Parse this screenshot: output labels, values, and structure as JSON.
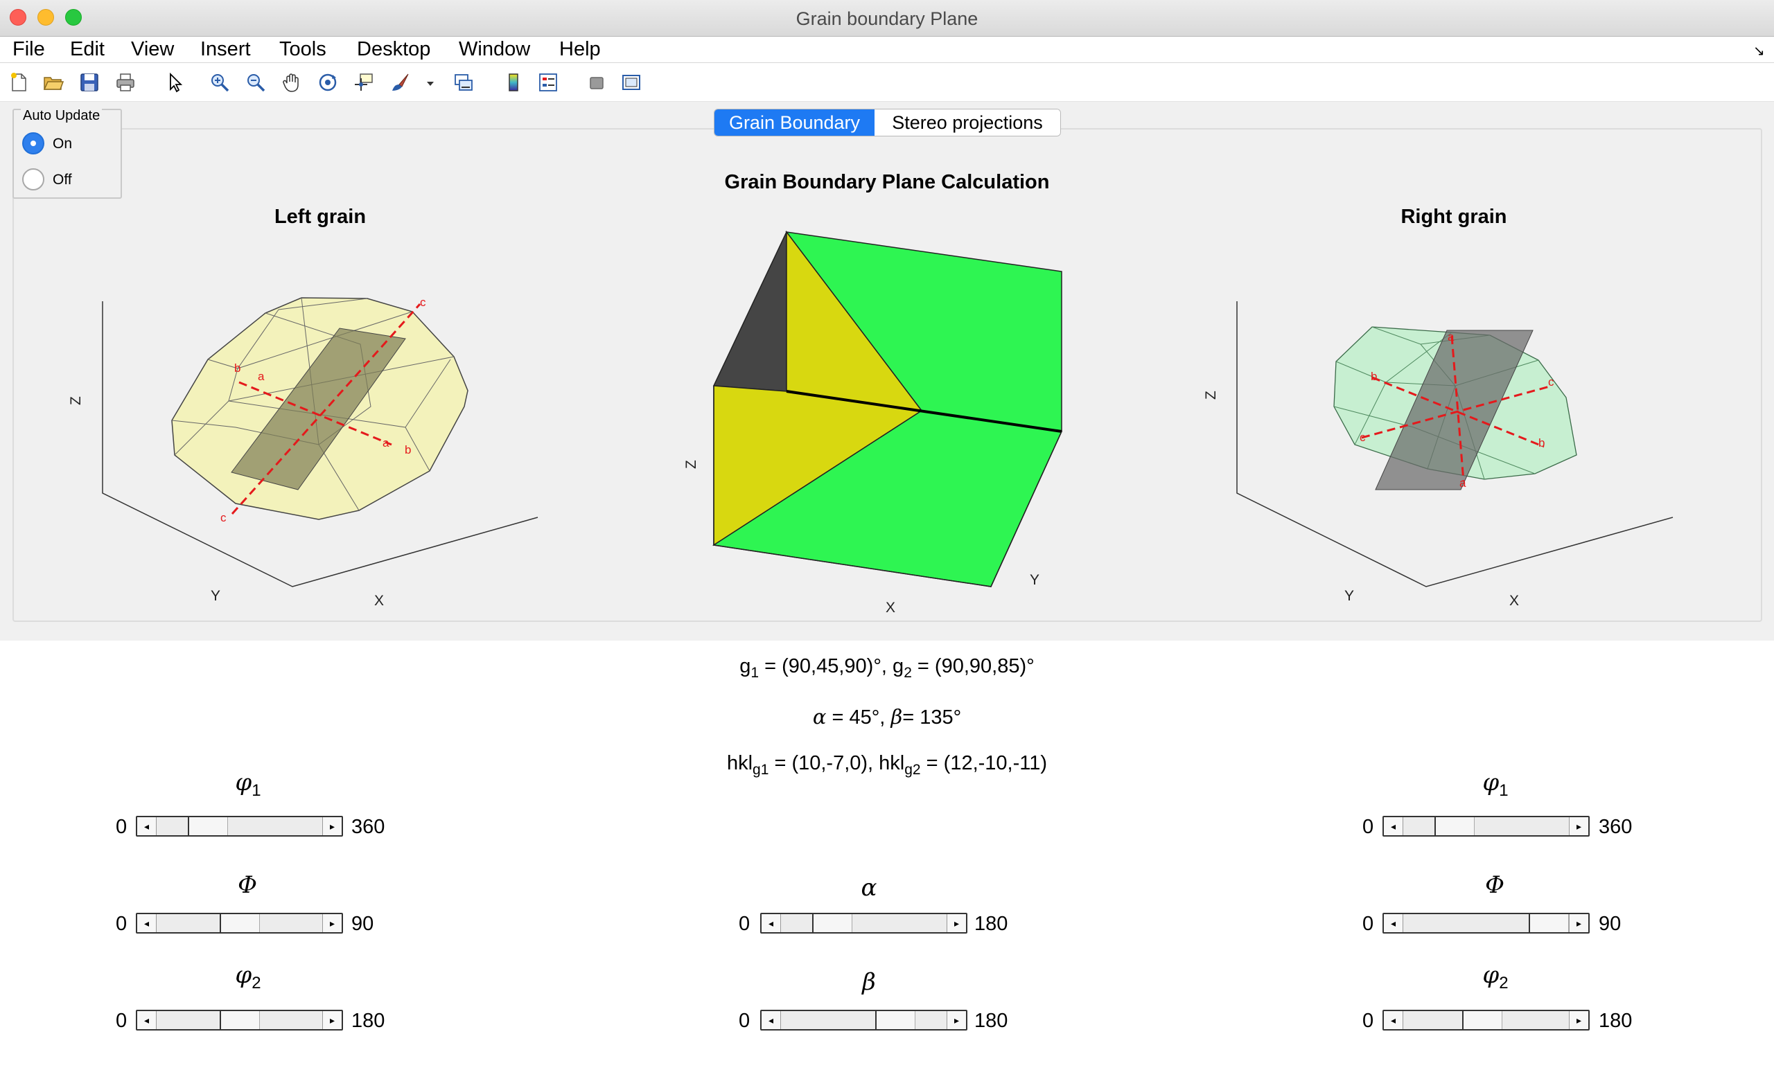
{
  "window": {
    "title": "Grain boundary Plane"
  },
  "menu": [
    "File",
    "Edit",
    "View",
    "Insert",
    "Tools",
    "Desktop",
    "Window",
    "Help"
  ],
  "toolbar_icons": [
    "new-file-icon",
    "open-folder-icon",
    "save-icon",
    "print-icon",
    "pointer-icon",
    "zoom-in-icon",
    "zoom-out-icon",
    "pan-hand-icon",
    "rotate-3d-icon",
    "data-cursor-icon",
    "brush-icon",
    "dropdown-arrow-icon",
    "link-plot-icon",
    "colorbar-icon",
    "legend-icon",
    "hide-plot-tools-icon",
    "show-plot-tools-icon"
  ],
  "auto_update": {
    "title": "Auto Update",
    "options": [
      "On",
      "Off"
    ],
    "selected": "On"
  },
  "tabs": [
    {
      "label": "Grain Boundary",
      "active": true
    },
    {
      "label": "Stereo projections",
      "active": false
    }
  ],
  "plots": {
    "main_title": "Grain Boundary Plane Calculation",
    "left_title": "Left grain",
    "right_title": "Right grain",
    "axis_labels": {
      "x": "X",
      "y": "Y",
      "z": "Z"
    },
    "crystal_axis_labels": {
      "a": "a",
      "b": "b",
      "c": "c"
    },
    "colors": {
      "left_crystal": "#f3f2bb",
      "right_crystal": "#bfefcb",
      "gb_yellow": "#d8d810",
      "gb_green": "#2ef552",
      "gb_dark": "#454545",
      "axis_red": "#e41a1c"
    }
  },
  "info": {
    "g1_label": "g",
    "g1_sub": "1",
    "g1_value": " = (90,45,90)°, ",
    "g2_label": "g",
    "g2_sub": "2",
    "g2_value": " = (90,90,85)°",
    "alpha_sym": "α",
    "alpha_text": " = 45°, ",
    "beta_sym": "β",
    "beta_text": "= 135°",
    "hkl1_label": "hkl",
    "hkl1_sub": "g1",
    "hkl1_value": " = (10,-7,0), ",
    "hkl2_label": "hkl",
    "hkl2_sub": "g2",
    "hkl2_value": " = (12,-10,-11)"
  },
  "sliders": {
    "left": [
      {
        "label": "φ",
        "sub": "1",
        "min": "0",
        "max": "360",
        "value": 90
      },
      {
        "label": "Φ",
        "sub": "",
        "min": "0",
        "max": "90",
        "value": 45
      },
      {
        "label": "φ",
        "sub": "2",
        "min": "0",
        "max": "180",
        "value": 90
      }
    ],
    "center": [
      {
        "label": "α",
        "sub": "",
        "min": "0",
        "max": "180",
        "value": 45
      },
      {
        "label": "β",
        "sub": "",
        "min": "0",
        "max": "180",
        "value": 135
      }
    ],
    "right": [
      {
        "label": "φ",
        "sub": "1",
        "min": "0",
        "max": "360",
        "value": 90
      },
      {
        "label": "Φ",
        "sub": "",
        "min": "0",
        "max": "90",
        "value": 90
      },
      {
        "label": "φ",
        "sub": "2",
        "min": "0",
        "max": "180",
        "value": 85
      }
    ]
  }
}
